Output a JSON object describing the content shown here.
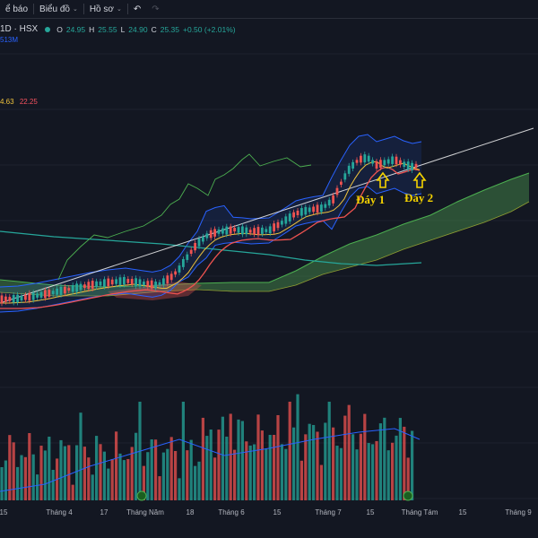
{
  "toolbar": {
    "item_alert": "ể báo",
    "item_charts": "Biểu đồ",
    "item_profile": "Hồ sơ"
  },
  "legend": {
    "symbol": "1D · HSX",
    "open_label": "O",
    "open": "24.95",
    "high_label": "H",
    "high": "25.55",
    "low_label": "L",
    "low": "24.90",
    "close_label": "C",
    "close": "25.35",
    "change": "+0.50 (+2.01%)",
    "volume": "513M"
  },
  "indicator": {
    "value1": "4.63",
    "value2": "22.25"
  },
  "annotations": {
    "bottom1": "Đáy 1",
    "bottom2": "Đáy 2"
  },
  "x_axis": [
    "15",
    "Tháng 4",
    "17",
    "Tháng Năm",
    "18",
    "Tháng 6",
    "15",
    "Tháng 7",
    "15",
    "Tháng Tám",
    "15",
    "Tháng 9"
  ],
  "colors": {
    "background": "#131722",
    "up": "#26a69a",
    "down": "#ef5350",
    "annotation": "#f5d300"
  },
  "chart_data": {
    "type": "candlestick",
    "series": [
      {
        "name": "price",
        "close_first": 9.5,
        "close_last": 25.35
      },
      {
        "name": "volume",
        "last": "513M"
      }
    ]
  }
}
